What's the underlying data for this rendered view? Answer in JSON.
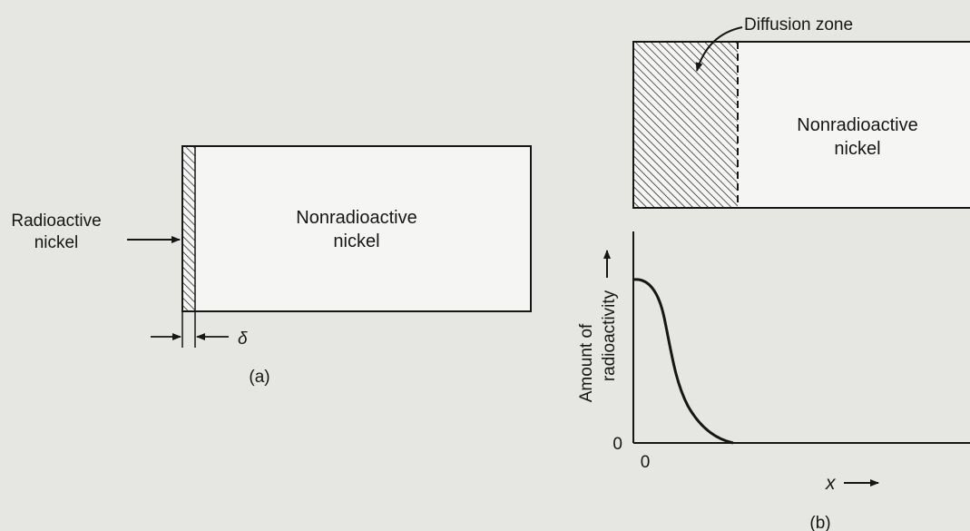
{
  "panel_a": {
    "radioactive_label_line1": "Radioactive",
    "radioactive_label_line2": "nickel",
    "block_label_line1": "Nonradioactive",
    "block_label_line2": "nickel",
    "thickness_symbol": "δ",
    "caption": "(a)"
  },
  "panel_b": {
    "diffusion_zone_label": "Diffusion zone",
    "block_label_line1": "Nonradioactive",
    "block_label_line2": "nickel",
    "ylabel_line1": "Amount of",
    "ylabel_line2": "radioactivity",
    "y_origin_tick": "0",
    "x_origin_tick": "0",
    "xlabel": "x",
    "caption": "(b)"
  },
  "colors": {
    "background": "#e6e6e3",
    "ink": "#161616",
    "box_fill": "#f5f5f3"
  }
}
